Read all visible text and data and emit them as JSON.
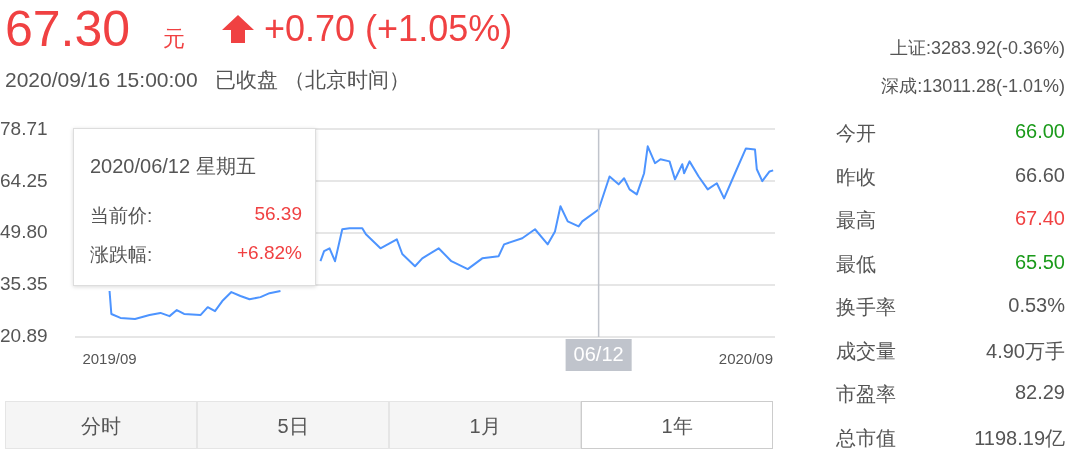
{
  "chart_data": {
    "type": "line",
    "title": "67.30",
    "subtitle": "2020/09/16 15:00:00   已收盘 （北京时间）",
    "annotations": [
      "元",
      "+0.70 (+1.05%)",
      "上证:3283.92(-0.36%)",
      "深成:13011.28(-1.01%)",
      "今开",
      "66.00",
      "昨收",
      "66.60",
      "最高",
      "67.40",
      "最低",
      "65.50",
      "换手率",
      "0.53%",
      "成交量",
      "4.90万手",
      "市盈率",
      "82.29",
      "总市值",
      "1198.19亿",
      "分时",
      "5日",
      "1月",
      "1年",
      "2020/06/12 星期五",
      "当前价:",
      "56.39",
      "涨跌幅:",
      "+6.82%"
    ],
    "xlim": [
      "2019-08-29",
      "2020-09-17"
    ],
    "xticks": [
      {
        "value": "2019-09-17",
        "label": "2019/09"
      },
      {
        "value": "2020-09-01",
        "label": "2020/09"
      }
    ],
    "ylim": [
      20.89,
      78.71
    ],
    "yticks": [
      20.89,
      35.35,
      {
        "value": 49.8,
        "label": "49.80"
      },
      64.25,
      78.71
    ],
    "grid": "y",
    "legend": false,
    "marker": "none",
    "line_style": "solid",
    "ref_lines": [
      {
        "axis": "x",
        "value": "2020-06-12",
        "label": "06/12",
        "color": "#c0c4cc"
      }
    ],
    "series": [
      {
        "color": "#4d94ff",
        "x": [
          "2019-09-17",
          "2019-09-18",
          "2019-09-23",
          "2019-10-01",
          "2019-10-09",
          "2019-10-15",
          "2019-10-20",
          "2019-10-24",
          "2019-10-28",
          "2019-11-06",
          "2019-11-10",
          "2019-11-14",
          "2019-11-18",
          "2019-11-23",
          "2019-11-28",
          "2019-12-03",
          "2019-12-09",
          "2019-12-14",
          "2019-12-20",
          "2019-12-31",
          "2020-01-11",
          "2020-01-13",
          "2020-01-16",
          "2020-01-19",
          "2020-01-23",
          "2020-01-27",
          "2020-02-03",
          "2020-02-05",
          "2020-02-13",
          "2020-02-22",
          "2020-02-25",
          "2020-03-03",
          "2020-03-07",
          "2020-03-16",
          "2020-03-23",
          "2020-04-01",
          "2020-04-09",
          "2020-04-18",
          "2020-04-21",
          "2020-05-01",
          "2020-05-08",
          "2020-05-15",
          "2020-05-19",
          "2020-05-22",
          "2020-05-26",
          "2020-06-01",
          "2020-06-03",
          "2020-06-12",
          "2020-06-18",
          "2020-06-23",
          "2020-06-26",
          "2020-06-29",
          "2020-07-03",
          "2020-07-07",
          "2020-07-09",
          "2020-07-13",
          "2020-07-16",
          "2020-07-21",
          "2020-07-24",
          "2020-07-28",
          "2020-07-29",
          "2020-08-01",
          "2020-08-06",
          "2020-08-11",
          "2020-08-16",
          "2020-08-20",
          "2020-08-26",
          "2020-09-01",
          "2020-09-06",
          "2020-09-07",
          "2020-09-10",
          "2020-09-14",
          "2020-09-16"
        ],
        "values": [
          33.7,
          27.3,
          26.2,
          25.9,
          27.0,
          27.6,
          26.7,
          28.4,
          27.3,
          27.0,
          29.2,
          28.1,
          30.9,
          33.4,
          32.3,
          31.4,
          32.0,
          33.1,
          33.7,
          null,
          42.0,
          44.8,
          45.6,
          42.0,
          50.9,
          51.2,
          51.2,
          49.5,
          45.6,
          48.1,
          44.0,
          40.6,
          42.8,
          45.6,
          42.0,
          39.8,
          42.8,
          43.4,
          46.7,
          48.4,
          50.9,
          46.7,
          50.3,
          57.3,
          53.1,
          51.7,
          53.1,
          56.4,
          65.6,
          63.4,
          65.1,
          62.0,
          60.6,
          66.5,
          74.0,
          69.3,
          70.4,
          69.8,
          64.8,
          69.0,
          66.5,
          69.8,
          65.6,
          62.0,
          63.7,
          59.5,
          66.5,
          73.4,
          73.1,
          67.6,
          64.3,
          67.0,
          67.3
        ]
      }
    ]
  }
}
